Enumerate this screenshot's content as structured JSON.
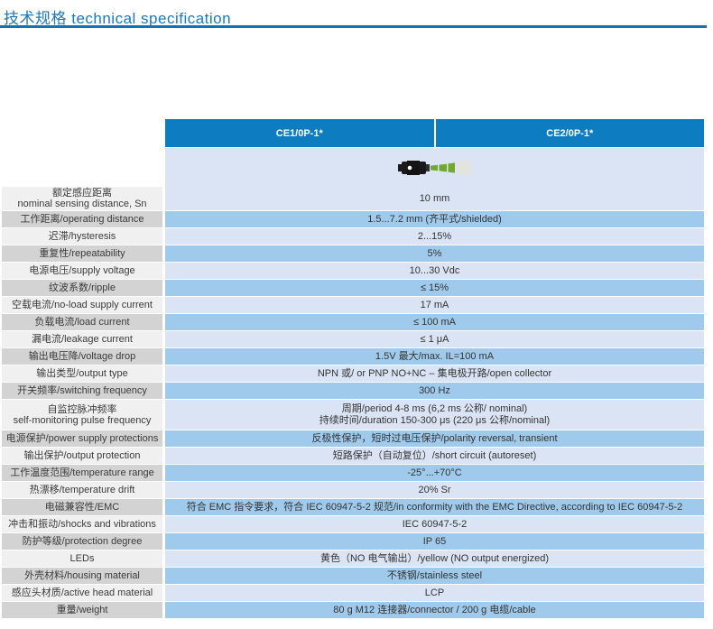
{
  "title": {
    "text": "技术规格 technical  specification"
  },
  "colors": {
    "accent_blue": "#1272b8",
    "header_blue": "#0d7cc1",
    "row_light_blue": "#dbe4f4",
    "row_medium_blue": "#9fcaeb",
    "label_light_gray": "#f0f0f0",
    "label_dark_gray": "#d3d3d3",
    "sensor_body": "#1a1a1a",
    "sensor_cone_green": "#71a830",
    "sensor_tip_gray": "#e4e4df"
  },
  "table": {
    "columns": [
      "CE1/0P-1*",
      "CE2/0P-1*"
    ],
    "product_image": {
      "name": "inductive-sensor-photo"
    },
    "rows": [
      {
        "label": [
          "额定感应距离",
          "nominal sensing distance, Sn"
        ],
        "value": [
          "10 mm"
        ]
      },
      {
        "label": [
          "工作距离/operating distance"
        ],
        "value": [
          "1.5...7.2 mm (齐平式/shielded)"
        ]
      },
      {
        "label": [
          "迟滞/hysteresis"
        ],
        "value": [
          "2...15%"
        ]
      },
      {
        "label": [
          "重复性/repeatability"
        ],
        "value": [
          "5%"
        ]
      },
      {
        "label": [
          "电源电压/supply voltage"
        ],
        "value": [
          "10...30 Vdc"
        ]
      },
      {
        "label": [
          "纹波系数/ripple"
        ],
        "value": [
          "≤ 15%"
        ]
      },
      {
        "label": [
          "空载电流/no-load supply current"
        ],
        "value": [
          "17 mA"
        ]
      },
      {
        "label": [
          "负载电流/load current"
        ],
        "value": [
          "≤ 100 mA"
        ]
      },
      {
        "label": [
          "漏电流/leakage current"
        ],
        "value": [
          "≤ 1 μA"
        ]
      },
      {
        "label": [
          "输出电压降/voltage drop"
        ],
        "value": [
          "1.5V 最大/max. IL=100 mA"
        ]
      },
      {
        "label": [
          "输出类型/output type"
        ],
        "value": [
          "NPN 或/ or PNP NO+NC – 集电极开路/open collector"
        ]
      },
      {
        "label": [
          "开关频率/switching frequency"
        ],
        "value": [
          "300 Hz"
        ]
      },
      {
        "label": [
          "自监控脉冲频率",
          "self-monitoring pulse frequency"
        ],
        "value": [
          "周期/period 4-8 ms (6,2 ms 公称/ nominal)",
          "持续时间/duration 150-300 μs (220 μs 公称/nominal)"
        ]
      },
      {
        "label": [
          "电源保护/power supply protections"
        ],
        "value": [
          "反极性保护，短时过电压保护/polarity reversal, transient"
        ]
      },
      {
        "label": [
          "输出保护/output protection"
        ],
        "value": [
          "短路保护（自动复位）/short circuit (autoreset)"
        ]
      },
      {
        "label": [
          "工作温度范围/temperature range"
        ],
        "value": [
          "-25°...+70°C"
        ]
      },
      {
        "label": [
          "热漂移/temperature drift"
        ],
        "value": [
          "20% Sr"
        ]
      },
      {
        "label": [
          "电磁兼容性/EMC"
        ],
        "value": [
          "符合 EMC 指令要求，符合 IEC 60947-5-2 规范/in conformity with the EMC Directive, according to IEC 60947-5-2"
        ]
      },
      {
        "label": [
          "冲击和振动/shocks and vibrations"
        ],
        "value": [
          "IEC 60947-5-2"
        ]
      },
      {
        "label": [
          "防护等级/protection degree"
        ],
        "value": [
          "IP 65"
        ]
      },
      {
        "label": [
          "LEDs"
        ],
        "value": [
          "黄色（NO 电气输出）/yellow (NO output energized)"
        ]
      },
      {
        "label": [
          "外壳材料/housing material"
        ],
        "value": [
          "不锈钢/stainless steel"
        ]
      },
      {
        "label": [
          "感应头材质/active head material"
        ],
        "value": [
          "LCP"
        ]
      },
      {
        "label": [
          "重量/weight"
        ],
        "value": [
          "80 g M12 连接器/connector / 200 g 电缆/cable"
        ]
      }
    ]
  }
}
